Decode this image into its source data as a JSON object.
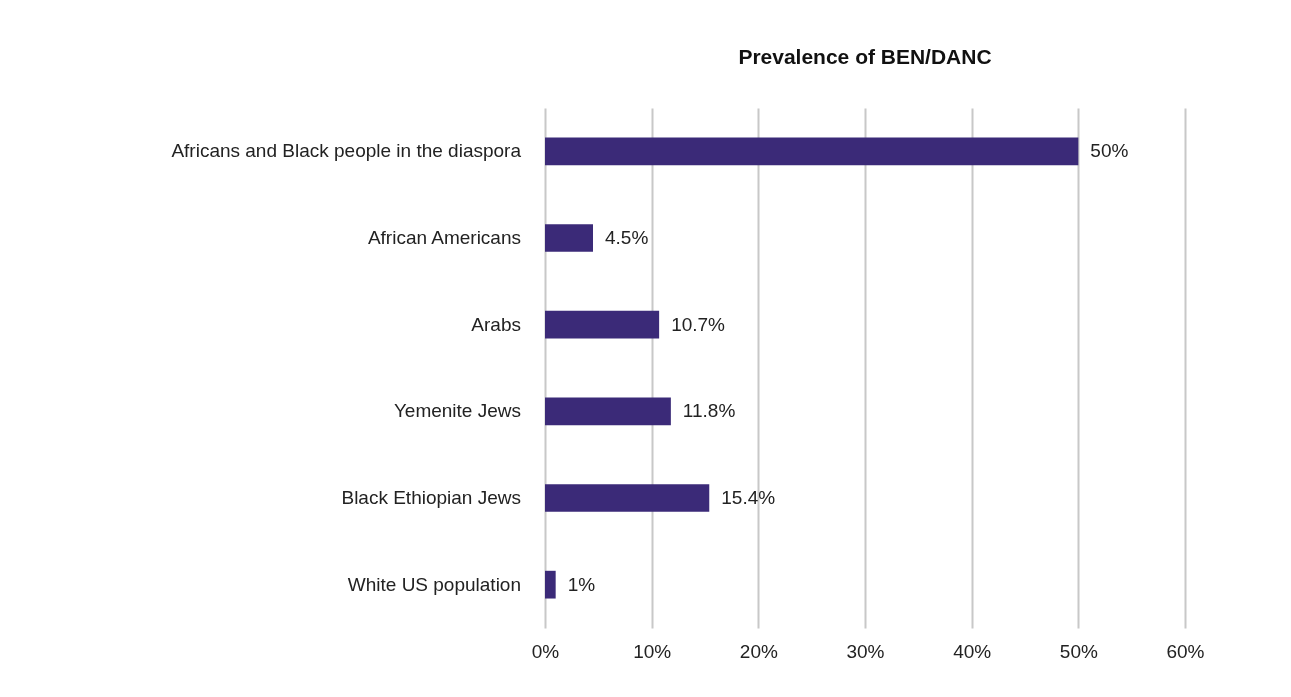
{
  "chart_data": {
    "type": "bar",
    "orientation": "horizontal",
    "title": "Prevalence of BEN/DANC",
    "categories": [
      "Africans and Black people in the diaspora",
      "African Americans",
      "Arabs",
      "Yemenite Jews",
      "Black Ethiopian Jews",
      "White US population"
    ],
    "values": [
      50,
      4.5,
      10.7,
      11.8,
      15.4,
      1
    ],
    "value_labels": [
      "50%",
      "4.5%",
      "10.7%",
      "11.8%",
      "15.4%",
      "1%"
    ],
    "color": "#3b2a78",
    "xlim": [
      0,
      60
    ],
    "xticks": [
      {
        "value": 0,
        "label": "0%"
      },
      {
        "value": 10,
        "label": "10%"
      },
      {
        "value": 20,
        "label": "20%"
      },
      {
        "value": 30,
        "label": "30%"
      },
      {
        "value": 40,
        "label": "40%"
      },
      {
        "value": 50,
        "label": "50%"
      },
      {
        "value": 60,
        "label": "60%"
      }
    ],
    "grid": "x"
  }
}
